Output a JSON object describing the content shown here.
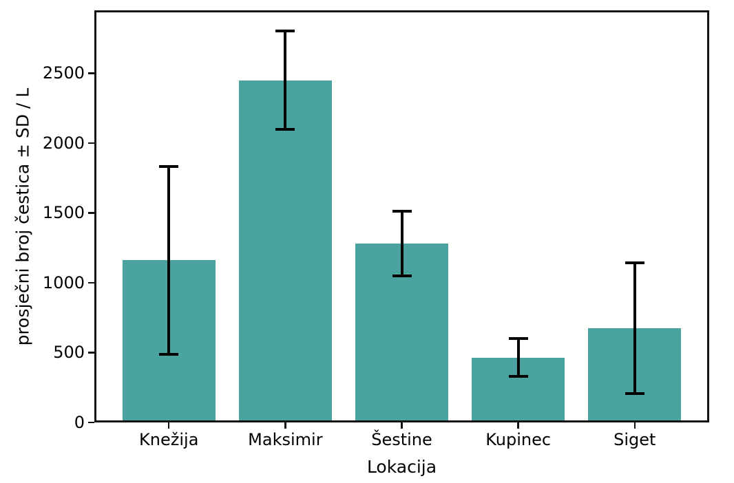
{
  "chart_data": {
    "type": "bar",
    "title": "",
    "xlabel": "Lokacija",
    "ylabel": "prosječni broj čestica ± SD / L",
    "categories": [
      "Knežija",
      "Maksimir",
      "Šestine",
      "Kupinec",
      "Siget"
    ],
    "values": [
      1160,
      2450,
      1280,
      465,
      675
    ],
    "error_sd": [
      670,
      350,
      230,
      135,
      470
    ],
    "error_low": [
      490,
      2100,
      1050,
      330,
      205
    ],
    "error_high": [
      1830,
      2800,
      1510,
      600,
      1145
    ],
    "ylim": [
      0,
      2950
    ],
    "yticks": [
      0,
      500,
      1000,
      1500,
      2000,
      2500
    ],
    "grid": false,
    "legend": false,
    "bar_color": "#4ba3a0",
    "error_color": "#000000",
    "axis_color": "#121212"
  }
}
